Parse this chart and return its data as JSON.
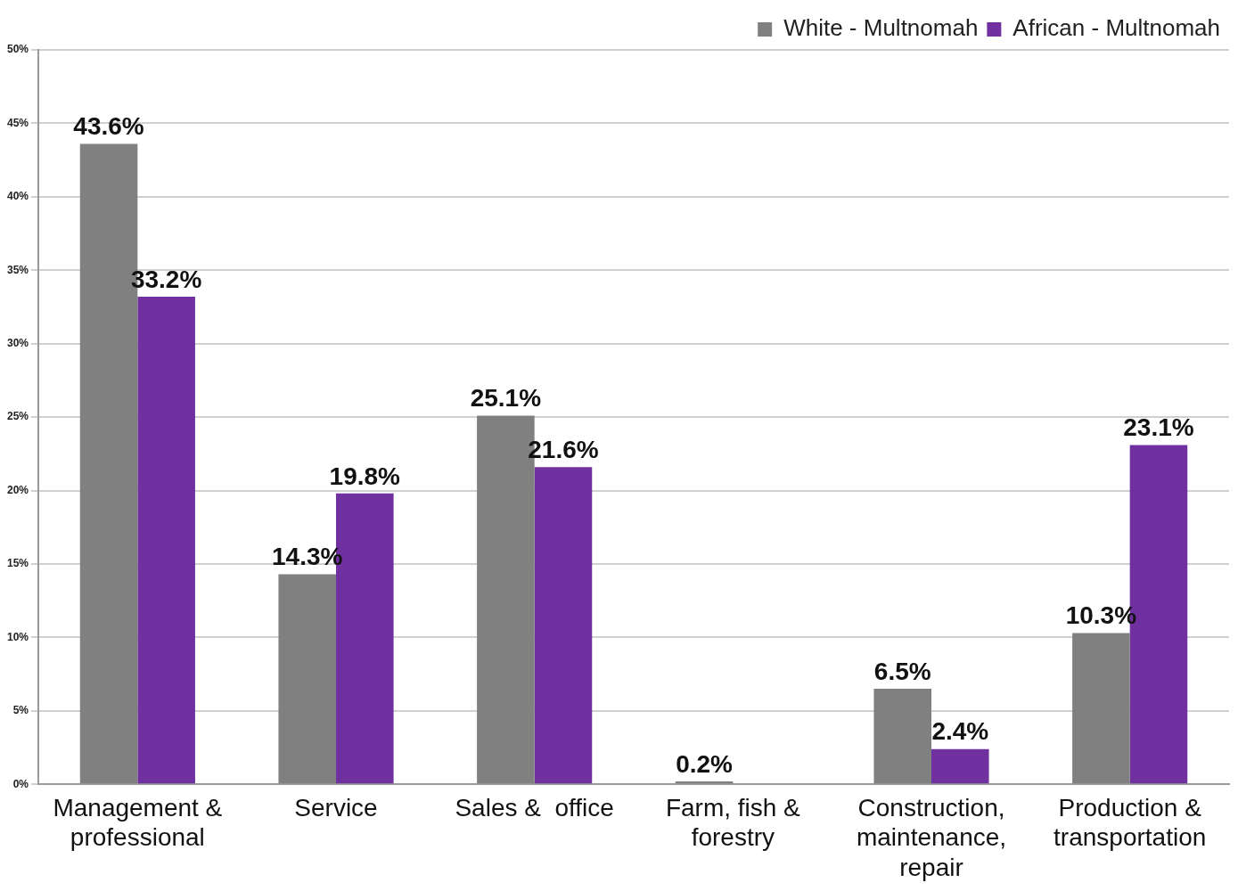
{
  "chart_data": {
    "type": "bar",
    "categories": [
      "Management & professional",
      "Service",
      "Sales &  office",
      "Farm, fish & forestry",
      "Construction, maintenance, repair",
      "Production & transportation"
    ],
    "series": [
      {
        "name": "White - Multnomah",
        "color": "#808080",
        "values": [
          43.6,
          14.3,
          25.1,
          0.2,
          6.5,
          10.3
        ],
        "value_labels": [
          "43.6%",
          "14.3%",
          "25.1%",
          "0.2%",
          "6.5%",
          "10.3%"
        ]
      },
      {
        "name": "African - Multnomah",
        "color": "#7030a0",
        "values": [
          33.2,
          19.8,
          21.6,
          null,
          2.4,
          23.1
        ],
        "value_labels": [
          "33.2%",
          "19.8%",
          "21.6%",
          null,
          "2.4%",
          "23.1%"
        ]
      }
    ],
    "ylim": [
      0,
      50
    ],
    "yticks": [
      {
        "value": 0,
        "label": "0%"
      },
      {
        "value": 5,
        "label": "5%"
      },
      {
        "value": 10,
        "label": "10%"
      },
      {
        "value": 15,
        "label": "15%"
      },
      {
        "value": 20,
        "label": "20%"
      },
      {
        "value": 25,
        "label": "25%"
      },
      {
        "value": 30,
        "label": "30%"
      },
      {
        "value": 35,
        "label": "35%"
      },
      {
        "value": 40,
        "label": "40%"
      },
      {
        "value": 45,
        "label": "45%"
      },
      {
        "value": 50,
        "label": "50%"
      }
    ],
    "grid": "y",
    "legend": "top right"
  }
}
